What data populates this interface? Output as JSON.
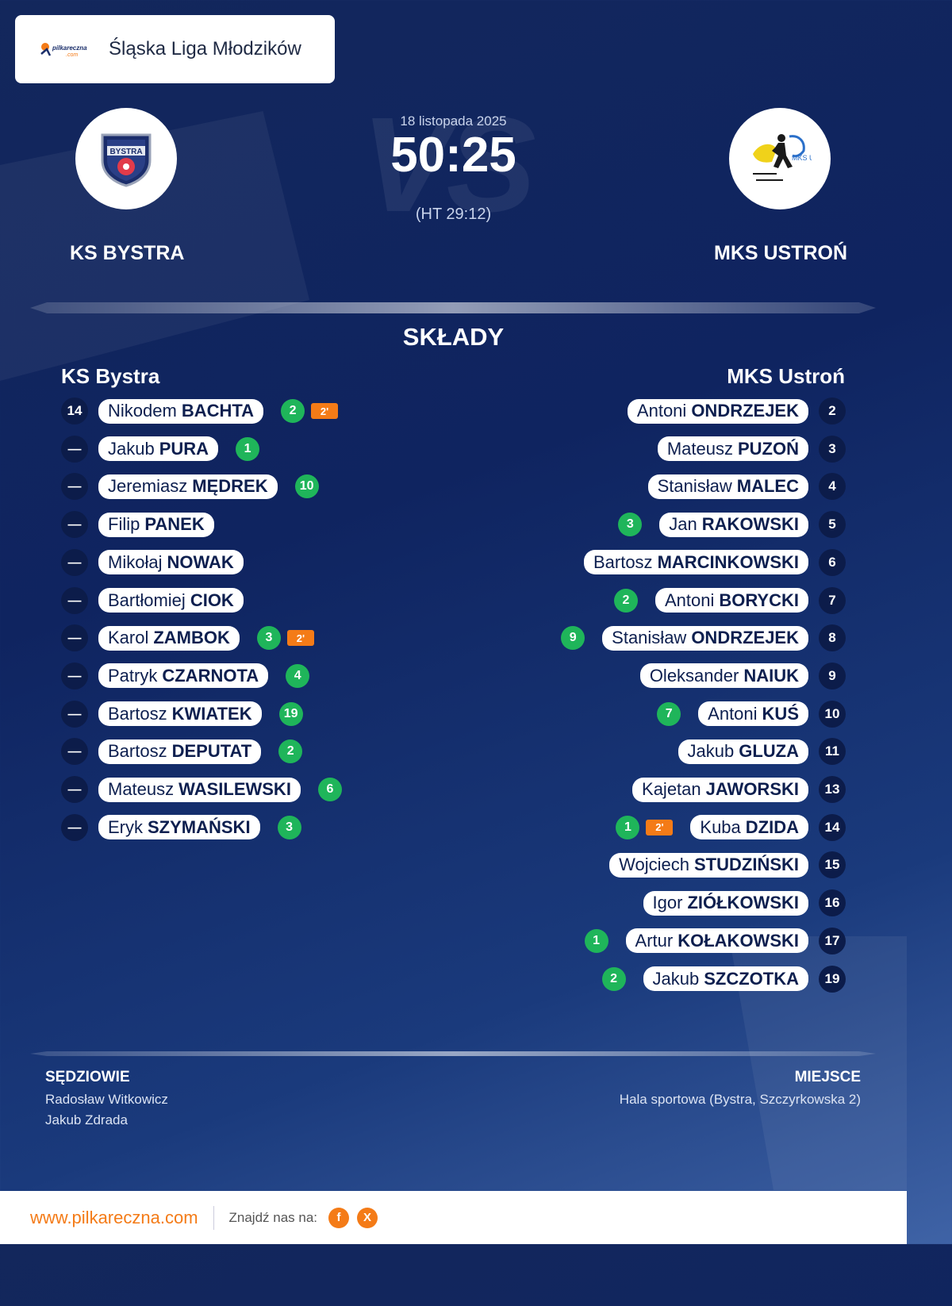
{
  "league": {
    "name": "Śląska Liga Młodzików",
    "logo_text": "pilkareczna",
    "logo_sub": ".com"
  },
  "match": {
    "date": "18 listopada 2025",
    "score": "50:25",
    "halftime": "(HT 29:12)",
    "vs": "VS"
  },
  "home": {
    "name": "KS BYSTRA",
    "crest_text": "BYSTRA",
    "lineup_title": "KS Bystra"
  },
  "away": {
    "name": "MKS USTROŃ",
    "crest_text": "MKS Ustroń",
    "lineup_title": "MKS Ustroń"
  },
  "section_title": "SKŁADY",
  "home_players": [
    {
      "num": "14",
      "first": "Nikodem",
      "last": "BACHTA",
      "goals": "2",
      "pen": "2'"
    },
    {
      "num": "—",
      "first": "Jakub",
      "last": "PURA",
      "goals": "1",
      "pen": ""
    },
    {
      "num": "—",
      "first": "Jeremiasz",
      "last": "MĘDREK",
      "goals": "10",
      "pen": ""
    },
    {
      "num": "—",
      "first": "Filip",
      "last": "PANEK",
      "goals": "",
      "pen": ""
    },
    {
      "num": "—",
      "first": "Mikołaj",
      "last": "NOWAK",
      "goals": "",
      "pen": ""
    },
    {
      "num": "—",
      "first": "Bartłomiej",
      "last": "CIOK",
      "goals": "",
      "pen": ""
    },
    {
      "num": "—",
      "first": "Karol",
      "last": "ZAMBOK",
      "goals": "3",
      "pen": "2'"
    },
    {
      "num": "—",
      "first": "Patryk",
      "last": "CZARNOTA",
      "goals": "4",
      "pen": ""
    },
    {
      "num": "—",
      "first": "Bartosz",
      "last": "KWIATEK",
      "goals": "19",
      "pen": ""
    },
    {
      "num": "—",
      "first": "Bartosz",
      "last": "DEPUTAT",
      "goals": "2",
      "pen": ""
    },
    {
      "num": "—",
      "first": "Mateusz",
      "last": "WASILEWSKI",
      "goals": "6",
      "pen": ""
    },
    {
      "num": "—",
      "first": "Eryk",
      "last": "SZYMAŃSKI",
      "goals": "3",
      "pen": ""
    }
  ],
  "away_players": [
    {
      "num": "2",
      "first": "Antoni",
      "last": "ONDRZEJEK",
      "goals": "",
      "pen": ""
    },
    {
      "num": "3",
      "first": "Mateusz",
      "last": "PUZOŃ",
      "goals": "",
      "pen": ""
    },
    {
      "num": "4",
      "first": "Stanisław",
      "last": "MALEC",
      "goals": "",
      "pen": ""
    },
    {
      "num": "5",
      "first": "Jan",
      "last": "RAKOWSKI",
      "goals": "3",
      "pen": ""
    },
    {
      "num": "6",
      "first": "Bartosz",
      "last": "MARCINKOWSKI",
      "goals": "",
      "pen": ""
    },
    {
      "num": "7",
      "first": "Antoni",
      "last": "BORYCKI",
      "goals": "2",
      "pen": ""
    },
    {
      "num": "8",
      "first": "Stanisław",
      "last": "ONDRZEJEK",
      "goals": "9",
      "pen": ""
    },
    {
      "num": "9",
      "first": "Oleksander",
      "last": "NAIUK",
      "goals": "",
      "pen": ""
    },
    {
      "num": "10",
      "first": "Antoni",
      "last": "KUŚ",
      "goals": "7",
      "pen": ""
    },
    {
      "num": "11",
      "first": "Jakub",
      "last": "GLUZA",
      "goals": "",
      "pen": ""
    },
    {
      "num": "13",
      "first": "Kajetan",
      "last": "JAWORSKI",
      "goals": "",
      "pen": ""
    },
    {
      "num": "14",
      "first": "Kuba",
      "last": "DZIDA",
      "goals": "1",
      "pen": "2'"
    },
    {
      "num": "15",
      "first": "Wojciech",
      "last": "STUDZIŃSKI",
      "goals": "",
      "pen": ""
    },
    {
      "num": "16",
      "first": "Igor",
      "last": "ZIÓŁKOWSKI",
      "goals": "",
      "pen": ""
    },
    {
      "num": "17",
      "first": "Artur",
      "last": "KOŁAKOWSKI",
      "goals": "1",
      "pen": ""
    },
    {
      "num": "19",
      "first": "Jakub",
      "last": "SZCZOTKA",
      "goals": "2",
      "pen": ""
    }
  ],
  "referees": {
    "label": "SĘDZIOWIE",
    "names": [
      "Radosław Witkowicz",
      "Jakub Zdrada"
    ]
  },
  "venue": {
    "label": "MIEJSCE",
    "name": "Hala sportowa (Bystra, Szczyrkowska 2)"
  },
  "footer": {
    "site": "www.pilkareczna.com",
    "find_us": "Znajdź nas na:",
    "facebook": "f",
    "x": "X"
  },
  "colors": {
    "goal": "#1fb55a",
    "penalty": "#f47b17",
    "accent": "#f47b17",
    "bg": "#0f2460"
  }
}
